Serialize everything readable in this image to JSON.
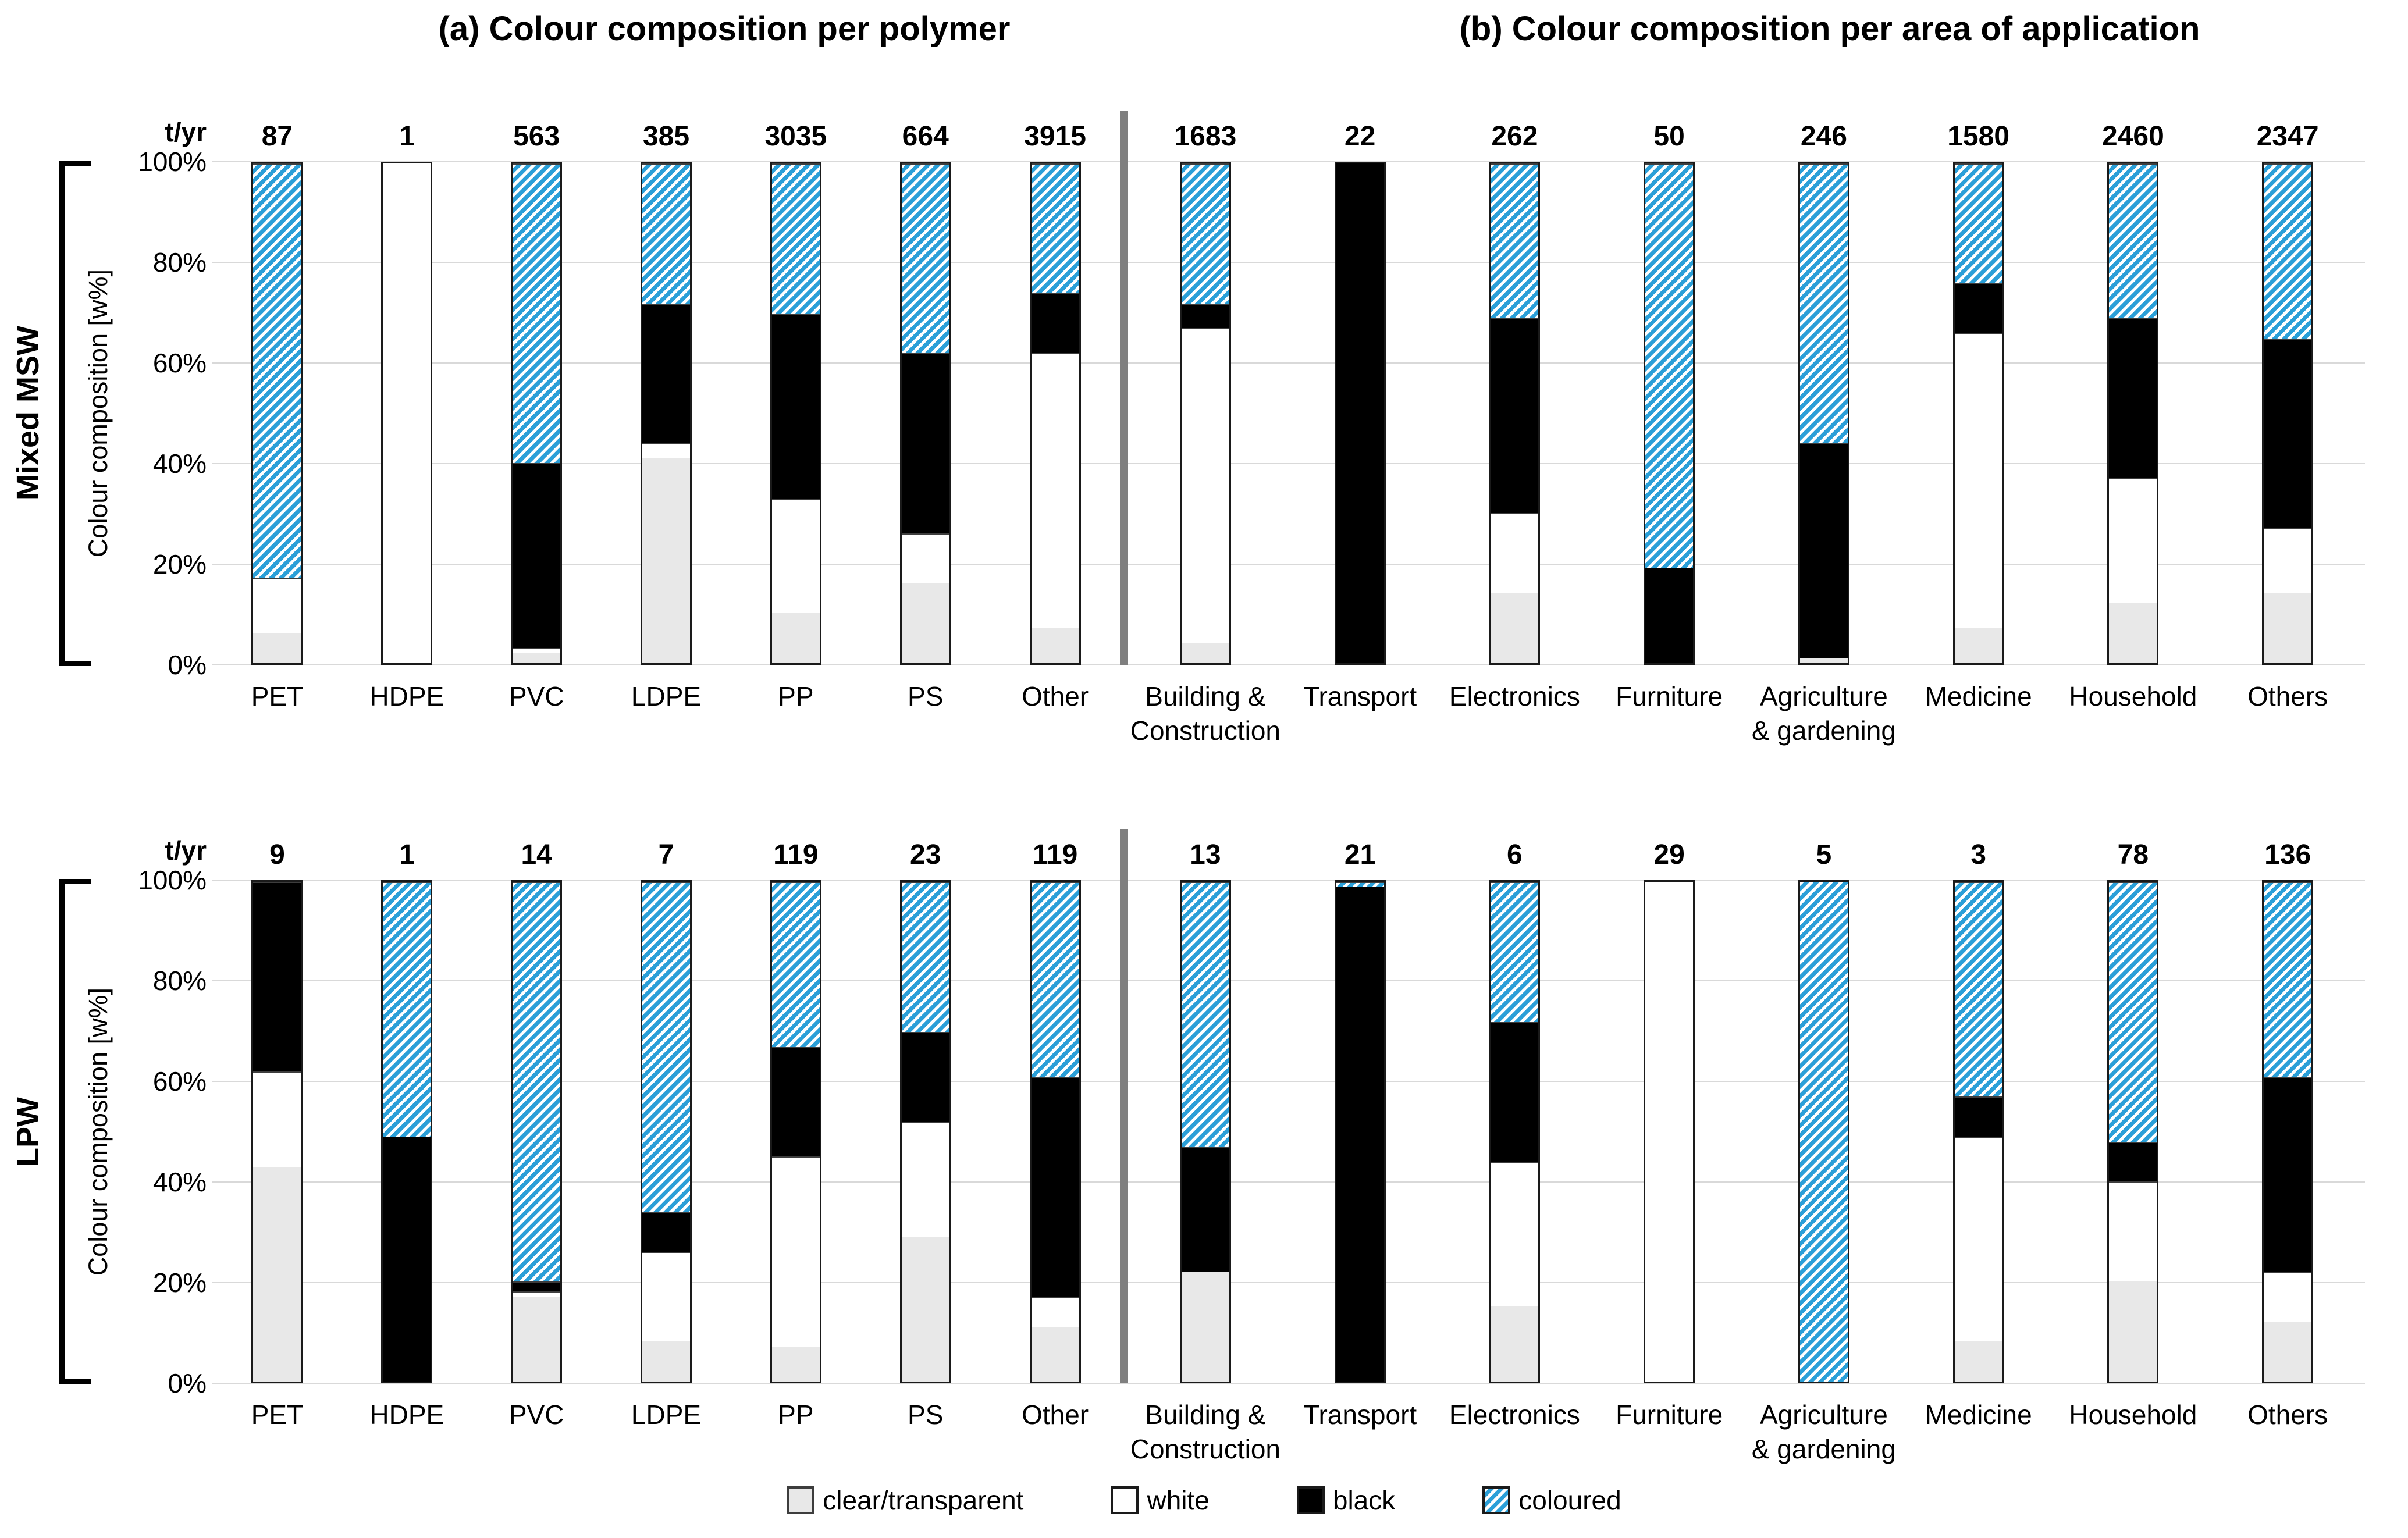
{
  "titles": {
    "a": "(a) Colour composition per polymer",
    "b": "(b) Colour composition per area of application"
  },
  "y_axis": {
    "label": "Colour composition [w%]",
    "tyr_label": "t/yr",
    "ticks": [
      "100%",
      "80%",
      "60%",
      "40%",
      "20%",
      "0%"
    ],
    "range": [
      0,
      100
    ]
  },
  "legend": {
    "items": [
      {
        "key": "clear",
        "label": "clear/transparent"
      },
      {
        "key": "white",
        "label": "white"
      },
      {
        "key": "black",
        "label": "black"
      },
      {
        "key": "coloured",
        "label": "coloured"
      }
    ]
  },
  "colors": {
    "clear": "#e8e8e8",
    "white": "#ffffff",
    "black": "#000000",
    "coloured_stripe": "#2a9fd8",
    "gridline": "#d9d9d9",
    "divider": "#7f7f7f",
    "bar_border": "#1a1a1a"
  },
  "chart_data": {
    "type": "bar",
    "subtype": "stacked-percent",
    "unit": "w%",
    "grid": true,
    "series_order": [
      "clear",
      "white",
      "black",
      "coloured"
    ],
    "rows": [
      {
        "id": "msw",
        "row_label": "Mixed MSW",
        "panels": [
          {
            "id": "msw-polymer",
            "bars": [
              {
                "label": [
                  "PET"
                ],
                "tyr": "87",
                "values": {
                  "clear": 6,
                  "white": 11,
                  "black": 0,
                  "coloured": 83
                }
              },
              {
                "label": [
                  "HDPE"
                ],
                "tyr": "1",
                "values": {
                  "clear": 0,
                  "white": 100,
                  "black": 0,
                  "coloured": 0
                }
              },
              {
                "label": [
                  "PVC"
                ],
                "tyr": "563",
                "values": {
                  "clear": 2,
                  "white": 1,
                  "black": 37,
                  "coloured": 60
                }
              },
              {
                "label": [
                  "LDPE"
                ],
                "tyr": "385",
                "values": {
                  "clear": 41,
                  "white": 3,
                  "black": 28,
                  "coloured": 28
                }
              },
              {
                "label": [
                  "PP"
                ],
                "tyr": "3035",
                "values": {
                  "clear": 10,
                  "white": 23,
                  "black": 37,
                  "coloured": 30
                }
              },
              {
                "label": [
                  "PS"
                ],
                "tyr": "664",
                "values": {
                  "clear": 16,
                  "white": 10,
                  "black": 36,
                  "coloured": 38
                }
              },
              {
                "label": [
                  "Other"
                ],
                "tyr": "3915",
                "values": {
                  "clear": 7,
                  "white": 55,
                  "black": 12,
                  "coloured": 26
                }
              }
            ]
          },
          {
            "id": "msw-application",
            "bars": [
              {
                "label": [
                  "Building &",
                  "Construction"
                ],
                "tyr": "1683",
                "values": {
                  "clear": 4,
                  "white": 63,
                  "black": 5,
                  "coloured": 28
                }
              },
              {
                "label": [
                  "Transport"
                ],
                "tyr": "22",
                "values": {
                  "clear": 0,
                  "white": 0,
                  "black": 100,
                  "coloured": 0
                }
              },
              {
                "label": [
                  "Electronics"
                ],
                "tyr": "262",
                "values": {
                  "clear": 14,
                  "white": 16,
                  "black": 39,
                  "coloured": 31
                }
              },
              {
                "label": [
                  "Furniture"
                ],
                "tyr": "50",
                "values": {
                  "clear": 0,
                  "white": 0,
                  "black": 19,
                  "coloured": 81
                }
              },
              {
                "label": [
                  "Agriculture",
                  "& gardening"
                ],
                "tyr": "246",
                "values": {
                  "clear": 1,
                  "white": 0,
                  "black": 43,
                  "coloured": 56
                }
              },
              {
                "label": [
                  "Medicine"
                ],
                "tyr": "1580",
                "values": {
                  "clear": 7,
                  "white": 59,
                  "black": 10,
                  "coloured": 24
                }
              },
              {
                "label": [
                  "Household"
                ],
                "tyr": "2460",
                "values": {
                  "clear": 12,
                  "white": 25,
                  "black": 32,
                  "coloured": 31
                }
              },
              {
                "label": [
                  "Others"
                ],
                "tyr": "2347",
                "values": {
                  "clear": 14,
                  "white": 13,
                  "black": 38,
                  "coloured": 35
                }
              }
            ]
          }
        ]
      },
      {
        "id": "lpw",
        "row_label": "LPW",
        "panels": [
          {
            "id": "lpw-polymer",
            "bars": [
              {
                "label": [
                  "PET"
                ],
                "tyr": "9",
                "values": {
                  "clear": 43,
                  "white": 19,
                  "black": 38,
                  "coloured": 0
                }
              },
              {
                "label": [
                  "HDPE"
                ],
                "tyr": "1",
                "values": {
                  "clear": 0,
                  "white": 0,
                  "black": 49,
                  "coloured": 51
                }
              },
              {
                "label": [
                  "PVC"
                ],
                "tyr": "14",
                "values": {
                  "clear": 17,
                  "white": 1,
                  "black": 2,
                  "coloured": 80
                }
              },
              {
                "label": [
                  "LDPE"
                ],
                "tyr": "7",
                "values": {
                  "clear": 8,
                  "white": 18,
                  "black": 8,
                  "coloured": 66
                }
              },
              {
                "label": [
                  "PP"
                ],
                "tyr": "119",
                "values": {
                  "clear": 7,
                  "white": 38,
                  "black": 22,
                  "coloured": 33
                }
              },
              {
                "label": [
                  "PS"
                ],
                "tyr": "23",
                "values": {
                  "clear": 29,
                  "white": 23,
                  "black": 18,
                  "coloured": 30
                }
              },
              {
                "label": [
                  "Other"
                ],
                "tyr": "119",
                "values": {
                  "clear": 11,
                  "white": 6,
                  "black": 44,
                  "coloured": 39
                }
              }
            ]
          },
          {
            "id": "lpw-application",
            "bars": [
              {
                "label": [
                  "Building &",
                  "Construction"
                ],
                "tyr": "13",
                "values": {
                  "clear": 22,
                  "white": 0,
                  "black": 25,
                  "coloured": 53
                }
              },
              {
                "label": [
                  "Transport"
                ],
                "tyr": "21",
                "values": {
                  "clear": 0,
                  "white": 0,
                  "black": 99,
                  "coloured": 1
                }
              },
              {
                "label": [
                  "Electronics"
                ],
                "tyr": "6",
                "values": {
                  "clear": 15,
                  "white": 29,
                  "black": 28,
                  "coloured": 28
                }
              },
              {
                "label": [
                  "Furniture"
                ],
                "tyr": "29",
                "values": {
                  "clear": 0,
                  "white": 100,
                  "black": 0,
                  "coloured": 0
                }
              },
              {
                "label": [
                  "Agriculture",
                  "& gardening"
                ],
                "tyr": "5",
                "values": {
                  "clear": 0,
                  "white": 0,
                  "black": 0,
                  "coloured": 100
                }
              },
              {
                "label": [
                  "Medicine"
                ],
                "tyr": "3",
                "values": {
                  "clear": 8,
                  "white": 41,
                  "black": 8,
                  "coloured": 43
                }
              },
              {
                "label": [
                  "Household"
                ],
                "tyr": "78",
                "values": {
                  "clear": 20,
                  "white": 20,
                  "black": 8,
                  "coloured": 52
                }
              },
              {
                "label": [
                  "Others"
                ],
                "tyr": "136",
                "values": {
                  "clear": 12,
                  "white": 10,
                  "black": 39,
                  "coloured": 39
                }
              }
            ]
          }
        ]
      }
    ]
  }
}
